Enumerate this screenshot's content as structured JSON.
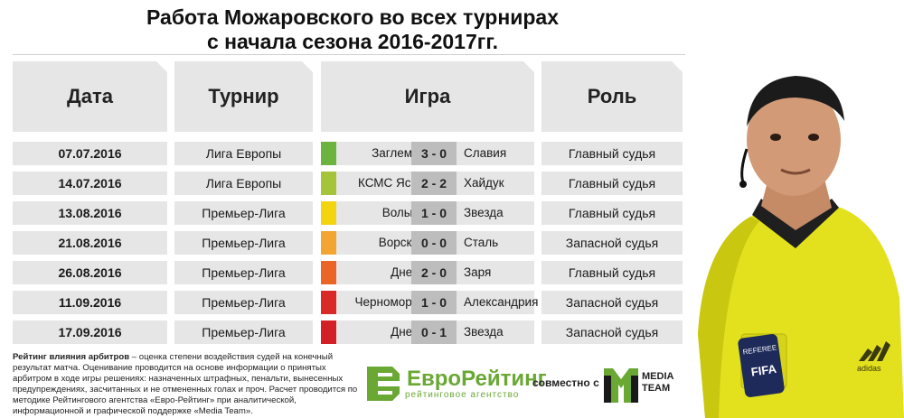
{
  "title": {
    "line1": "Работа Можаровского во всех турнирах",
    "line2": "с начала сезона 2016-2017гг."
  },
  "headers": {
    "date": "Дата",
    "tournament": "Турнир",
    "game": "Игра",
    "role": "Роль"
  },
  "rows": [
    {
      "date": "07.07.2016",
      "tournament": "Лига Европы",
      "home": "Заглембе",
      "score": "3 - 0",
      "away": "Славия",
      "role": "Главный судья",
      "color": "#6db33f"
    },
    {
      "date": "14.07.2016",
      "tournament": "Лига Европы",
      "home": "КСМС Яссы",
      "score": "2 - 2",
      "away": "Хайдук",
      "role": "Главный судья",
      "color": "#a6c43a"
    },
    {
      "date": "13.08.2016",
      "tournament": "Премьер-Лига",
      "home": "Волынь",
      "score": "1 - 0",
      "away": "Звезда",
      "role": "Главный судья",
      "color": "#f2d40f"
    },
    {
      "date": "21.08.2016",
      "tournament": "Премьер-Лига",
      "home": "Ворскла",
      "score": "0 - 0",
      "away": "Сталь",
      "role": "Запасной судья",
      "color": "#f3a531"
    },
    {
      "date": "26.08.2016",
      "tournament": "Премьер-Лига",
      "home": "Днепр",
      "score": "2 - 0",
      "away": "Заря",
      "role": "Главный судья",
      "color": "#ea6526"
    },
    {
      "date": "11.09.2016",
      "tournament": "Премьер-Лига",
      "home": "Черноморец",
      "score": "1 - 0",
      "away": "Александрия",
      "role": "Запасной судья",
      "color": "#d92a27"
    },
    {
      "date": "17.09.2016",
      "tournament": "Премьер-Лига",
      "home": "Днепр",
      "score": "0 - 1",
      "away": "Звезда",
      "role": "Запасной судья",
      "color": "#d31f26"
    }
  ],
  "footnote": {
    "bold": "Рейтинг влияния арбитров",
    "text": " – оценка степени воздействия судей на конечный результат матча. Оценивание проводится на основе информации о принятых арбитром в ходе игры решениях: назначенных штрафных, пенальти, вынесенных предупреждениях, засчитанных и не отмененных голах и проч. Расчет проводится по методике Рейтингового агентства «Евро-Рейтинг» при аналитической, информационной и графической поддержке «Media Team»."
  },
  "logos": {
    "eurorating": {
      "name": "ЕвроРейтинг",
      "subtitle": "рейтинговое агентство",
      "color": "#6aa834"
    },
    "together": "совместно с",
    "mediateam": {
      "line1": "MEDIA",
      "line2": "TEAM",
      "color": "#6aa834"
    }
  },
  "photo": {
    "badge_text": "REFEREE",
    "logo_text": "FIFA",
    "brand_text": "adidas"
  }
}
